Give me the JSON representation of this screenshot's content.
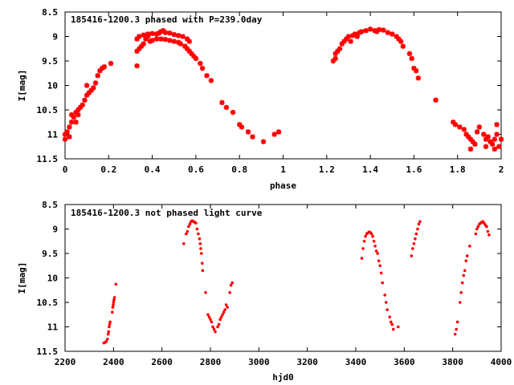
{
  "chart_data": [
    {
      "type": "scatter",
      "title": "185416-1200.3 phased with P=239.0day",
      "xlabel": "phase",
      "ylabel": "I[mag]",
      "xlim": [
        0,
        2
      ],
      "ylim": [
        8.5,
        11.5
      ],
      "y_inverted": true,
      "x_ticks": [
        "0",
        "0.2",
        "0.4",
        "0.6",
        "0.8",
        "1",
        "1.2",
        "1.4",
        "1.6",
        "1.8",
        "2"
      ],
      "y_ticks": [
        "8.5",
        "9",
        "9.5",
        "10",
        "10.5",
        "11",
        "11.5"
      ],
      "grid": false,
      "marker": "star",
      "color": "#ff0000",
      "series": [
        {
          "points": [
            [
              0.0,
              11.1
            ],
            [
              0.0,
              11.0
            ],
            [
              0.01,
              10.95
            ],
            [
              0.02,
              10.85
            ],
            [
              0.03,
              10.75
            ],
            [
              0.02,
              11.05
            ],
            [
              0.03,
              10.6
            ],
            [
              0.04,
              10.65
            ],
            [
              0.05,
              10.55
            ],
            [
              0.05,
              10.75
            ],
            [
              0.06,
              10.5
            ],
            [
              0.07,
              10.45
            ],
            [
              0.08,
              10.4
            ],
            [
              0.06,
              10.6
            ],
            [
              0.09,
              10.3
            ],
            [
              0.1,
              10.2
            ],
            [
              0.11,
              10.15
            ],
            [
              0.12,
              10.1
            ],
            [
              0.1,
              10.0
            ],
            [
              0.13,
              10.05
            ],
            [
              0.14,
              9.95
            ],
            [
              0.15,
              9.8
            ],
            [
              0.16,
              9.7
            ],
            [
              0.17,
              9.65
            ],
            [
              0.18,
              9.62
            ],
            [
              0.21,
              9.55
            ],
            [
              0.33,
              9.6
            ],
            [
              0.33,
              9.3
            ],
            [
              0.34,
              9.25
            ],
            [
              0.35,
              9.2
            ],
            [
              0.36,
              9.15
            ],
            [
              0.37,
              9.05
            ],
            [
              0.38,
              9.0
            ],
            [
              0.39,
              9.1
            ],
            [
              0.4,
              9.08
            ],
            [
              0.42,
              9.05
            ],
            [
              0.44,
              9.05
            ],
            [
              0.46,
              9.06
            ],
            [
              0.48,
              9.08
            ],
            [
              0.5,
              9.1
            ],
            [
              0.52,
              9.12
            ],
            [
              0.53,
              9.15
            ],
            [
              0.55,
              9.2
            ],
            [
              0.33,
              9.05
            ],
            [
              0.34,
              9.0
            ],
            [
              0.36,
              8.97
            ],
            [
              0.38,
              8.95
            ],
            [
              0.4,
              8.94
            ],
            [
              0.42,
              8.95
            ],
            [
              0.43,
              8.93
            ],
            [
              0.44,
              8.9
            ],
            [
              0.45,
              8.88
            ],
            [
              0.46,
              8.92
            ],
            [
              0.48,
              8.93
            ],
            [
              0.5,
              8.96
            ],
            [
              0.52,
              8.98
            ],
            [
              0.54,
              9.0
            ],
            [
              0.56,
              9.05
            ],
            [
              0.57,
              9.1
            ],
            [
              0.56,
              9.25
            ],
            [
              0.57,
              9.3
            ],
            [
              0.58,
              9.35
            ],
            [
              0.59,
              9.4
            ],
            [
              0.6,
              9.45
            ],
            [
              0.62,
              9.55
            ],
            [
              0.63,
              9.65
            ],
            [
              0.65,
              9.8
            ],
            [
              0.67,
              9.9
            ],
            [
              0.72,
              10.35
            ],
            [
              0.74,
              10.45
            ],
            [
              0.77,
              10.55
            ],
            [
              0.8,
              10.8
            ],
            [
              0.81,
              10.85
            ],
            [
              0.84,
              10.95
            ],
            [
              0.86,
              11.05
            ],
            [
              0.91,
              11.15
            ],
            [
              0.96,
              11.0
            ],
            [
              0.98,
              10.95
            ],
            [
              1.23,
              9.5
            ],
            [
              1.24,
              9.45
            ],
            [
              1.24,
              9.35
            ],
            [
              1.25,
              9.3
            ],
            [
              1.26,
              9.25
            ],
            [
              1.27,
              9.15
            ],
            [
              1.28,
              9.1
            ],
            [
              1.29,
              9.05
            ],
            [
              1.3,
              9.0
            ],
            [
              1.31,
              9.1
            ],
            [
              1.32,
              8.98
            ],
            [
              1.33,
              8.95
            ],
            [
              1.34,
              9.0
            ],
            [
              1.35,
              8.92
            ],
            [
              1.36,
              8.9
            ],
            [
              1.38,
              8.88
            ],
            [
              1.4,
              8.85
            ],
            [
              1.42,
              8.88
            ],
            [
              1.43,
              8.9
            ],
            [
              1.44,
              8.86
            ],
            [
              1.46,
              8.87
            ],
            [
              1.48,
              8.92
            ],
            [
              1.5,
              8.95
            ],
            [
              1.52,
              9.0
            ],
            [
              1.53,
              9.05
            ],
            [
              1.54,
              9.1
            ],
            [
              1.55,
              9.2
            ],
            [
              1.58,
              9.35
            ],
            [
              1.59,
              9.45
            ],
            [
              1.6,
              9.65
            ],
            [
              1.61,
              9.7
            ],
            [
              1.62,
              9.85
            ],
            [
              1.7,
              10.3
            ],
            [
              1.78,
              10.75
            ],
            [
              1.79,
              10.8
            ],
            [
              1.81,
              10.85
            ],
            [
              1.83,
              10.9
            ],
            [
              1.84,
              11.0
            ],
            [
              1.85,
              11.05
            ],
            [
              1.86,
              11.1
            ],
            [
              1.87,
              11.15
            ],
            [
              1.88,
              11.2
            ],
            [
              1.89,
              10.95
            ],
            [
              1.9,
              10.85
            ],
            [
              1.92,
              11.0
            ],
            [
              1.93,
              11.1
            ],
            [
              1.94,
              11.05
            ],
            [
              1.95,
              11.15
            ],
            [
              1.96,
              11.2
            ],
            [
              1.97,
              11.1
            ],
            [
              1.98,
              11.0
            ],
            [
              1.98,
              10.8
            ],
            [
              1.99,
              11.25
            ],
            [
              2.0,
              11.1
            ],
            [
              1.97,
              11.3
            ],
            [
              1.86,
              11.3
            ],
            [
              1.93,
              11.25
            ]
          ]
        }
      ]
    },
    {
      "type": "scatter",
      "title": "185416-1200.3 not phased light curve",
      "xlabel": "hjd0",
      "ylabel": "I[mag]",
      "xlim": [
        2200,
        4000
      ],
      "ylim": [
        8.5,
        11.5
      ],
      "y_inverted": true,
      "x_ticks": [
        "2200",
        "2400",
        "2600",
        "2800",
        "3000",
        "3200",
        "3400",
        "3600",
        "3800",
        "4000"
      ],
      "y_ticks": [
        "8.5",
        "9",
        "9.5",
        "10",
        "10.5",
        "11",
        "11.5"
      ],
      "grid": false,
      "marker": "dot",
      "color": "#ff0000",
      "series": [
        {
          "points": [
            [
              2360,
              11.33
            ],
            [
              2365,
              11.32
            ],
            [
              2370,
              11.3
            ],
            [
              2375,
              11.25
            ],
            [
              2378,
              11.15
            ],
            [
              2380,
              11.1
            ],
            [
              2382,
              11.0
            ],
            [
              2384,
              10.95
            ],
            [
              2386,
              10.9
            ],
            [
              2395,
              10.7
            ],
            [
              2397,
              10.6
            ],
            [
              2399,
              10.55
            ],
            [
              2400,
              10.5
            ],
            [
              2402,
              10.45
            ],
            [
              2404,
              10.4
            ],
            [
              2410,
              10.13
            ],
            [
              2690,
              9.3
            ],
            [
              2700,
              9.1
            ],
            [
              2705,
              9.05
            ],
            [
              2710,
              8.95
            ],
            [
              2715,
              8.9
            ],
            [
              2720,
              8.85
            ],
            [
              2725,
              8.83
            ],
            [
              2730,
              8.85
            ],
            [
              2735,
              8.86
            ],
            [
              2740,
              8.88
            ],
            [
              2745,
              9.0
            ],
            [
              2750,
              9.1
            ],
            [
              2755,
              9.2
            ],
            [
              2758,
              9.3
            ],
            [
              2760,
              9.4
            ],
            [
              2763,
              9.5
            ],
            [
              2766,
              9.7
            ],
            [
              2768,
              9.85
            ],
            [
              2780,
              10.3
            ],
            [
              2790,
              10.75
            ],
            [
              2795,
              10.8
            ],
            [
              2800,
              10.85
            ],
            [
              2805,
              10.9
            ],
            [
              2810,
              11.0
            ],
            [
              2815,
              11.05
            ],
            [
              2820,
              11.1
            ],
            [
              2830,
              11.0
            ],
            [
              2835,
              10.95
            ],
            [
              2840,
              10.85
            ],
            [
              2845,
              10.8
            ],
            [
              2850,
              10.75
            ],
            [
              2855,
              10.7
            ],
            [
              2860,
              10.65
            ],
            [
              2865,
              10.55
            ],
            [
              2870,
              10.6
            ],
            [
              2880,
              10.3
            ],
            [
              2885,
              10.15
            ],
            [
              2890,
              10.1
            ],
            [
              3425,
              9.6
            ],
            [
              3430,
              9.4
            ],
            [
              3435,
              9.25
            ],
            [
              3440,
              9.15
            ],
            [
              3445,
              9.1
            ],
            [
              3450,
              9.08
            ],
            [
              3455,
              9.06
            ],
            [
              3460,
              9.07
            ],
            [
              3465,
              9.1
            ],
            [
              3470,
              9.15
            ],
            [
              3475,
              9.25
            ],
            [
              3480,
              9.35
            ],
            [
              3485,
              9.45
            ],
            [
              3490,
              9.5
            ],
            [
              3495,
              9.65
            ],
            [
              3500,
              9.75
            ],
            [
              3505,
              9.9
            ],
            [
              3510,
              10.1
            ],
            [
              3520,
              10.35
            ],
            [
              3525,
              10.5
            ],
            [
              3530,
              10.65
            ],
            [
              3540,
              10.8
            ],
            [
              3545,
              10.9
            ],
            [
              3550,
              10.95
            ],
            [
              3555,
              11.05
            ],
            [
              3575,
              11.0
            ],
            [
              3630,
              9.55
            ],
            [
              3635,
              9.4
            ],
            [
              3640,
              9.3
            ],
            [
              3645,
              9.2
            ],
            [
              3650,
              9.1
            ],
            [
              3655,
              9.0
            ],
            [
              3660,
              8.9
            ],
            [
              3665,
              8.85
            ],
            [
              3810,
              11.15
            ],
            [
              3815,
              11.05
            ],
            [
              3820,
              10.9
            ],
            [
              3830,
              10.5
            ],
            [
              3835,
              10.3
            ],
            [
              3840,
              10.1
            ],
            [
              3845,
              9.95
            ],
            [
              3850,
              9.85
            ],
            [
              3855,
              9.65
            ],
            [
              3860,
              9.55
            ],
            [
              3870,
              9.35
            ],
            [
              3895,
              9.1
            ],
            [
              3900,
              9.0
            ],
            [
              3905,
              8.95
            ],
            [
              3910,
              8.9
            ],
            [
              3915,
              8.88
            ],
            [
              3920,
              8.86
            ],
            [
              3925,
              8.85
            ],
            [
              3930,
              8.88
            ],
            [
              3935,
              8.92
            ],
            [
              3940,
              8.95
            ],
            [
              3945,
              9.05
            ],
            [
              3950,
              9.12
            ]
          ]
        }
      ]
    }
  ]
}
